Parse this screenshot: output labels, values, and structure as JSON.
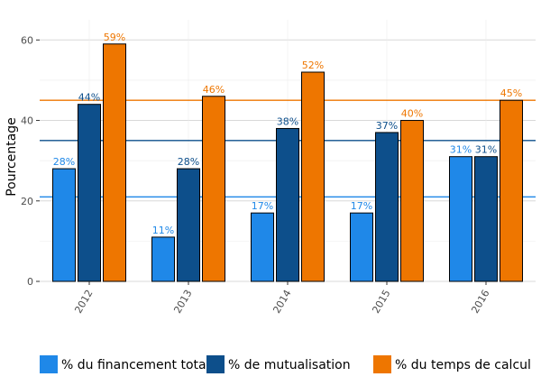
{
  "chart_data": {
    "type": "bar",
    "title": "",
    "xlabel": "",
    "ylabel": "Pourcentage",
    "ylim": [
      0,
      65
    ],
    "yticks": [
      0,
      20,
      40,
      60
    ],
    "grid": true,
    "legend_position": "bottom",
    "categories": [
      "2012",
      "2013",
      "2014",
      "2015",
      "2016"
    ],
    "series": [
      {
        "name": "% du financement total",
        "color": "#1f88e8",
        "values": [
          28,
          11,
          17,
          17,
          31
        ],
        "labels": [
          "28%",
          "11%",
          "17%",
          "17%",
          "31%"
        ]
      },
      {
        "name": "% de mutualisation",
        "color": "#0d4f8b",
        "values": [
          44,
          28,
          38,
          37,
          31
        ],
        "labels": [
          "44%",
          "28%",
          "38%",
          "37%",
          "31%"
        ]
      },
      {
        "name": "% du temps de calcul",
        "color": "#ee7600",
        "values": [
          59,
          46,
          52,
          40,
          45
        ],
        "labels": [
          "59%",
          "46%",
          "52%",
          "40%",
          "45%"
        ]
      }
    ],
    "reference_lines": [
      {
        "value": 21,
        "color": "#1f88e8"
      },
      {
        "value": 35,
        "color": "#0d4f8b"
      },
      {
        "value": 45,
        "color": "#ee7600"
      }
    ]
  }
}
